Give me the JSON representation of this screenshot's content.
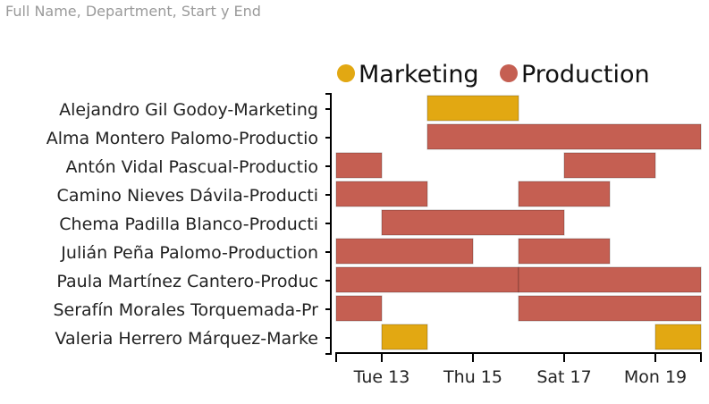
{
  "header": {
    "title": "Full Name, Department, Start y End"
  },
  "chart_data": {
    "type": "gantt",
    "title": "Full Name, Department, Start y End",
    "x_unit": "day of month",
    "xlim": [
      12,
      20
    ],
    "x_ticks": [
      {
        "value": 13,
        "label": "Tue 13"
      },
      {
        "value": 15,
        "label": "Thu 15"
      },
      {
        "value": 17,
        "label": "Sat 17"
      },
      {
        "value": 19,
        "label": "Mon 19"
      }
    ],
    "legend": {
      "placement": "top",
      "entries": [
        {
          "name": "Marketing",
          "color": "#E2A812"
        },
        {
          "name": "Production",
          "color": "#C55F52"
        }
      ]
    },
    "rows": [
      {
        "label": "Alejandro Gil Godoy-Marketing",
        "tasks": [
          {
            "dept": "Marketing",
            "start": 14,
            "end": 16
          }
        ]
      },
      {
        "label": "Alma Montero Palomo-Productio",
        "tasks": [
          {
            "dept": "Production",
            "start": 14,
            "end": 20
          }
        ]
      },
      {
        "label": "Antón Vidal Pascual-Productio",
        "tasks": [
          {
            "dept": "Production",
            "start": 12,
            "end": 13
          },
          {
            "dept": "Production",
            "start": 17,
            "end": 19
          }
        ]
      },
      {
        "label": "Camino Nieves Dávila-Producti",
        "tasks": [
          {
            "dept": "Production",
            "start": 12,
            "end": 14
          },
          {
            "dept": "Production",
            "start": 16,
            "end": 18
          }
        ]
      },
      {
        "label": "Chema Padilla Blanco-Producti",
        "tasks": [
          {
            "dept": "Production",
            "start": 13,
            "end": 17
          }
        ]
      },
      {
        "label": "Julián Peña Palomo-Production",
        "tasks": [
          {
            "dept": "Production",
            "start": 12,
            "end": 15
          },
          {
            "dept": "Production",
            "start": 16,
            "end": 18
          }
        ]
      },
      {
        "label": "Paula Martínez Cantero-Produc",
        "tasks": [
          {
            "dept": "Production",
            "start": 12,
            "end": 16
          },
          {
            "dept": "Production",
            "start": 16,
            "end": 20
          }
        ]
      },
      {
        "label": "Serafín Morales Torquemada-Pr",
        "tasks": [
          {
            "dept": "Production",
            "start": 12,
            "end": 13
          },
          {
            "dept": "Production",
            "start": 16,
            "end": 20
          }
        ]
      },
      {
        "label": "Valeria Herrero Márquez-Marke",
        "tasks": [
          {
            "dept": "Marketing",
            "start": 13,
            "end": 14
          },
          {
            "dept": "Marketing",
            "start": 19,
            "end": 20
          }
        ]
      }
    ]
  }
}
